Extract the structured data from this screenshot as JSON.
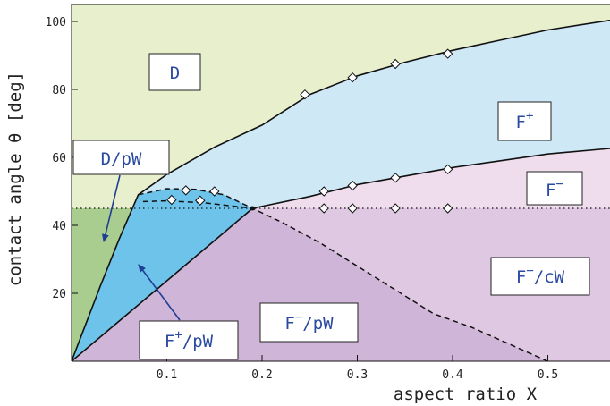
{
  "chart_data": {
    "type": "area",
    "title": "",
    "xlabel": "aspect ratio X",
    "ylabel": "contact angle θ [deg]",
    "xlim": [
      0,
      0.58
    ],
    "ylim": [
      0,
      105
    ],
    "x_ticks": [
      {
        "v": 0.1,
        "label": "0.1"
      },
      {
        "v": 0.2,
        "label": "0.2"
      },
      {
        "v": 0.3,
        "label": "0.3"
      },
      {
        "v": 0.4,
        "label": "0.4"
      },
      {
        "v": 0.5,
        "label": "0.5"
      }
    ],
    "y_ticks": [
      {
        "v": 20,
        "label": "20"
      },
      {
        "v": 40,
        "label": "40"
      },
      {
        "v": 60,
        "label": "60"
      },
      {
        "v": 80,
        "label": "80"
      },
      {
        "v": 100,
        "label": "100"
      }
    ],
    "grid": false,
    "colors": {
      "D": "#e8efcc",
      "Fplus": "#cfe8f6",
      "Fminus": "#efdcec",
      "FminusCW": "#dfc8e1",
      "FminusPW": "#cfb5d7",
      "FplusPW": "#6ec3ea",
      "DpW": "#a9cd8e",
      "line": "#111111",
      "label_text": "#2a4aa0",
      "arrow": "#1f3f95"
    },
    "reference_line_theta": 45,
    "regions": [
      {
        "id": "D",
        "label_main": "D",
        "label_sup": ""
      },
      {
        "id": "Fplus",
        "label_main": "F",
        "label_sup": "+"
      },
      {
        "id": "Fminus",
        "label_main": "F",
        "label_sup": "−"
      },
      {
        "id": "FminusCW",
        "label_main": "F",
        "label_sup": "−",
        "label_rest": "/cW"
      },
      {
        "id": "FminusPW",
        "label_main": "F",
        "label_sup": "−",
        "label_rest": "/pW"
      },
      {
        "id": "FplusPW",
        "label_main": "F",
        "label_sup": "+",
        "label_rest": "/pW"
      },
      {
        "id": "DpW",
        "label_main": "D/pW",
        "label_sup": ""
      }
    ],
    "series": [
      {
        "id": "boundary_D_Fplus",
        "style": "solid",
        "points": [
          [
            0,
            0
          ],
          [
            0.03,
            22
          ],
          [
            0.05,
            36
          ],
          [
            0.07,
            49
          ],
          [
            0.1,
            55
          ],
          [
            0.15,
            63
          ],
          [
            0.2,
            69.5
          ],
          [
            0.25,
            78.5
          ],
          [
            0.3,
            84
          ],
          [
            0.35,
            88
          ],
          [
            0.4,
            91.5
          ],
          [
            0.45,
            94.5
          ],
          [
            0.5,
            97.5
          ],
          [
            0.58,
            101
          ]
        ]
      },
      {
        "id": "boundary_Fplus_Fminus",
        "style": "solid",
        "points": [
          [
            0.19,
            45
          ],
          [
            0.25,
            48.5
          ],
          [
            0.3,
            52
          ],
          [
            0.35,
            54.5
          ],
          [
            0.4,
            57
          ],
          [
            0.45,
            59
          ],
          [
            0.5,
            61
          ],
          [
            0.58,
            63
          ]
        ]
      },
      {
        "id": "boundary_FplusPW_FminusPW",
        "style": "solid",
        "points": [
          [
            0,
            0
          ],
          [
            0.19,
            45
          ]
        ]
      },
      {
        "id": "dashed_upper",
        "style": "dashed",
        "points": [
          [
            0.07,
            49
          ],
          [
            0.1,
            50.8
          ],
          [
            0.13,
            50.6
          ],
          [
            0.16,
            49
          ],
          [
            0.19,
            45
          ]
        ]
      },
      {
        "id": "dashed_lower",
        "style": "dashed",
        "points": [
          [
            0.075,
            47
          ],
          [
            0.1,
            47.2
          ],
          [
            0.14,
            46.6
          ],
          [
            0.19,
            45
          ],
          [
            0.22,
            41
          ],
          [
            0.26,
            35
          ],
          [
            0.3,
            28
          ],
          [
            0.34,
            21
          ],
          [
            0.38,
            14
          ],
          [
            0.42,
            10
          ],
          [
            0.46,
            5
          ],
          [
            0.5,
            0
          ]
        ]
      }
    ],
    "markers": [
      [
        0.245,
        78.5
      ],
      [
        0.295,
        83.5
      ],
      [
        0.34,
        87.5
      ],
      [
        0.395,
        90.5
      ],
      [
        0.265,
        50
      ],
      [
        0.295,
        51.7
      ],
      [
        0.34,
        54
      ],
      [
        0.395,
        56.5
      ],
      [
        0.265,
        45
      ],
      [
        0.295,
        45
      ],
      [
        0.34,
        45
      ],
      [
        0.395,
        45
      ],
      [
        0.105,
        47.5
      ],
      [
        0.12,
        50.3
      ],
      [
        0.135,
        47.3
      ],
      [
        0.15,
        50
      ]
    ]
  }
}
